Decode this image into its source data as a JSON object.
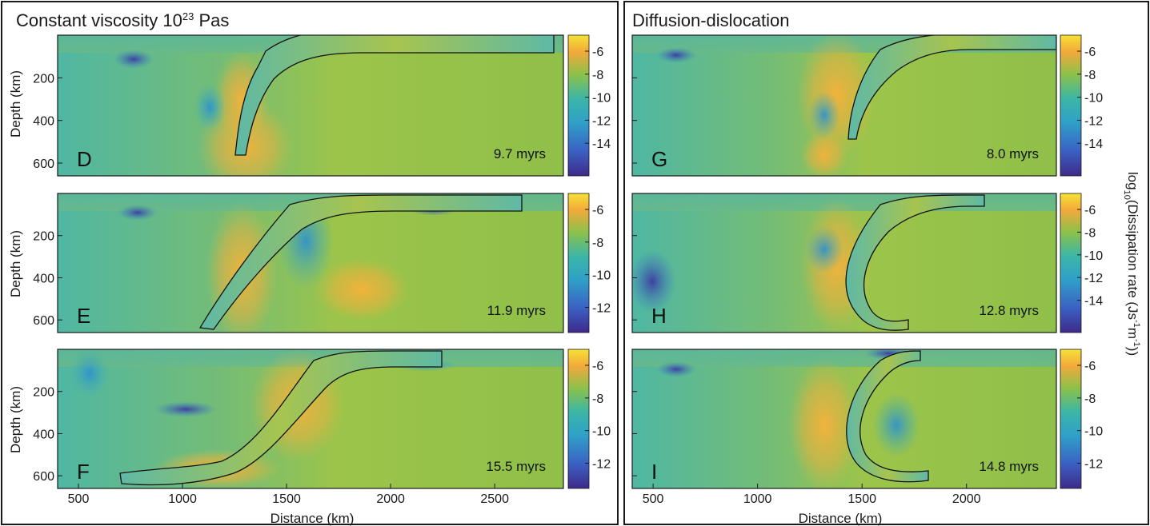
{
  "chart_data": [
    {
      "type": "heatmap",
      "title_main": "Constant viscosity 10",
      "title_sup": "23",
      "title_unit": " Pas",
      "xlabel": "Distance (km)",
      "ylabel": "Depth (km)",
      "xlim": [
        400,
        2830
      ],
      "ylim": [
        660,
        0
      ],
      "xticks": [
        "500",
        "1000",
        "1500",
        "2000",
        "2500"
      ],
      "yticks": [
        "200",
        "400",
        "600"
      ],
      "panels": [
        {
          "letter": "D",
          "time": "9.7 myrs",
          "cbar_ticks": [
            "-6",
            "-8",
            "-10",
            "-12",
            "-14"
          ]
        },
        {
          "letter": "E",
          "time": "11.9 myrs",
          "cbar_ticks": [
            "-6",
            "-8",
            "-10",
            "-12"
          ]
        },
        {
          "letter": "F",
          "time": "15.5 myrs",
          "cbar_ticks": [
            "-6",
            "-8",
            "-10",
            "-12"
          ]
        }
      ]
    },
    {
      "type": "heatmap",
      "title": "Diffusion-dislocation",
      "xlabel": "Distance (km)",
      "xlim": [
        400,
        2430
      ],
      "ylim": [
        660,
        0
      ],
      "xticks": [
        "500",
        "1000",
        "1500",
        "2000"
      ],
      "panels": [
        {
          "letter": "G",
          "time": "8.0 myrs",
          "cbar_ticks": [
            "-6",
            "-8",
            "-10",
            "-12",
            "-14"
          ]
        },
        {
          "letter": "H",
          "time": "12.8 myrs",
          "cbar_ticks": [
            "-6",
            "-8",
            "-10",
            "-12",
            "-14"
          ]
        },
        {
          "letter": "I",
          "time": "14.8 myrs",
          "cbar_ticks": [
            "-6",
            "-8",
            "-10",
            "-12"
          ]
        }
      ],
      "colorbar_label_prefix": "log",
      "colorbar_label_sub": "10",
      "colorbar_label_main": "(Dissipation rate (Js",
      "colorbar_label_exp1": "-1",
      "colorbar_label_mid": "m",
      "colorbar_label_exp2": "-1",
      "colorbar_label_end": "))"
    }
  ],
  "colors": {
    "field": "#8cc14a",
    "yellow": "#f7d834",
    "orange": "#f2a93b",
    "teal": "#4ab8a6",
    "cyan": "#2fa0c8",
    "blue": "#3a62c4",
    "navy": "#3e2a8a",
    "frame": "#1a1a1a"
  }
}
